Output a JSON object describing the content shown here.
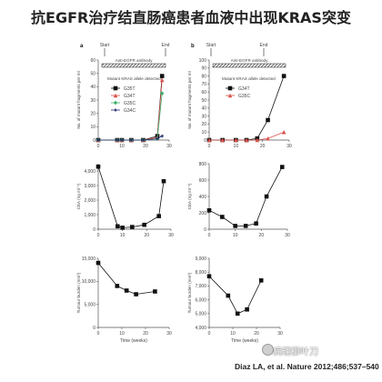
{
  "title": "抗EGFR治疗结直肠癌患者血液中出现KRAS突变",
  "citation": "Diaz LA, et al. Nature 2012;486;537–540",
  "watermark": "病理柳叶刀",
  "panels": {
    "a": {
      "letter": "a",
      "start": "Start",
      "end": "End",
      "antibody": "Anti-EGFR antibody"
    },
    "b": {
      "letter": "b",
      "start": "Start",
      "end": "End",
      "antibody": "Anti-EGFR antibody"
    }
  },
  "colors": {
    "black": "#111111",
    "red": "#d9534f",
    "green": "#3cb371",
    "navy": "#1f2a6b",
    "axis": "#555555"
  },
  "chart_data": [
    {
      "type": "line",
      "panel": "a-top",
      "ylabel": "No. of mutant fragments per ml",
      "xlim": [
        0,
        30
      ],
      "ylim": [
        0,
        60
      ],
      "xticks": [
        0,
        10,
        20,
        30
      ],
      "yticks": [
        0,
        10,
        20,
        30,
        40,
        50,
        60
      ],
      "legend_title": "Mutant KRAS allele detected",
      "series": [
        {
          "name": "G35T",
          "color": "#111111",
          "marker": "square",
          "x": [
            0,
            8,
            10,
            14,
            19,
            25,
            27
          ],
          "y": [
            0,
            0,
            0,
            0,
            0,
            3,
            48
          ]
        },
        {
          "name": "G34T",
          "color": "#d9534f",
          "marker": "triangle",
          "x": [
            0,
            8,
            10,
            14,
            19,
            25,
            27
          ],
          "y": [
            0,
            0,
            0,
            0,
            0,
            2,
            45
          ]
        },
        {
          "name": "G35C",
          "color": "#3cb371",
          "marker": "diamond",
          "x": [
            0,
            8,
            10,
            14,
            19,
            25,
            27
          ],
          "y": [
            0,
            0,
            0,
            0,
            0,
            1,
            35
          ]
        },
        {
          "name": "G34C",
          "color": "#1f2a6b",
          "marker": "star",
          "x": [
            0,
            8,
            10,
            14,
            19,
            25,
            27
          ],
          "y": [
            0,
            0,
            0,
            0,
            0,
            1,
            3
          ]
        }
      ]
    },
    {
      "type": "line",
      "panel": "b-top",
      "ylabel": "No. of mutant fragments per ml",
      "xlim": [
        0,
        30
      ],
      "ylim": [
        0,
        100
      ],
      "xticks": [
        0,
        10,
        20,
        30
      ],
      "yticks": [
        0,
        10,
        20,
        30,
        40,
        50,
        60,
        70,
        80,
        90,
        100
      ],
      "legend_title": "Mutant KRAS allele detected",
      "series": [
        {
          "name": "G34T",
          "color": "#111111",
          "marker": "square",
          "x": [
            0,
            5,
            10,
            14,
            18,
            22,
            28
          ],
          "y": [
            0,
            0,
            0,
            0,
            2,
            25,
            80
          ]
        },
        {
          "name": "G35C",
          "color": "#d9534f",
          "marker": "triangle",
          "x": [
            0,
            5,
            10,
            14,
            18,
            22,
            28
          ],
          "y": [
            0,
            0,
            0,
            0,
            0,
            2,
            10
          ]
        }
      ]
    },
    {
      "type": "line",
      "panel": "a-mid",
      "ylabel": "CEA (ng ml⁻¹)",
      "xlim": [
        0,
        30
      ],
      "ylim": [
        0,
        4500
      ],
      "xticks": [
        0,
        10,
        20,
        30
      ],
      "yticks": [
        0,
        1000,
        2000,
        3000,
        4000
      ],
      "series": [
        {
          "name": "",
          "color": "#111111",
          "marker": "square",
          "x": [
            0,
            8,
            10,
            14,
            19,
            25,
            27
          ],
          "y": [
            4300,
            200,
            100,
            150,
            300,
            900,
            3300
          ]
        }
      ]
    },
    {
      "type": "line",
      "panel": "b-mid",
      "ylabel": "CEA (ng ml⁻¹)",
      "xlim": [
        0,
        30
      ],
      "ylim": [
        0,
        800
      ],
      "xticks": [
        0,
        10,
        20,
        30
      ],
      "yticks": [
        0,
        200,
        400,
        600,
        800
      ],
      "series": [
        {
          "name": "",
          "color": "#111111",
          "marker": "square",
          "x": [
            0,
            5,
            10,
            14,
            18,
            22,
            28
          ],
          "y": [
            230,
            150,
            40,
            40,
            70,
            400,
            760
          ]
        }
      ]
    },
    {
      "type": "line",
      "panel": "a-bot",
      "ylabel": "Tumour burden (mm³)",
      "xlabel": "Time (weeks)",
      "xlim": [
        0,
        30
      ],
      "ylim": [
        0,
        15000
      ],
      "xticks": [
        0,
        10,
        20,
        30
      ],
      "yticks": [
        0,
        5000,
        10000,
        15000
      ],
      "series": [
        {
          "name": "",
          "color": "#111111",
          "marker": "square",
          "x": [
            0,
            8,
            12,
            16,
            24
          ],
          "y": [
            14000,
            9000,
            8000,
            7200,
            7800
          ]
        }
      ]
    },
    {
      "type": "line",
      "panel": "b-bot",
      "ylabel": "Tumour burden (mm³)",
      "xlabel": "Time (weeks)",
      "xlim": [
        0,
        30
      ],
      "ylim": [
        4000,
        9000
      ],
      "xticks": [
        0,
        10,
        20,
        30
      ],
      "yticks": [
        4000,
        5000,
        6000,
        7000,
        8000,
        9000
      ],
      "series": [
        {
          "name": "",
          "color": "#111111",
          "marker": "square",
          "x": [
            0,
            8,
            12,
            16,
            22
          ],
          "y": [
            7700,
            6300,
            5000,
            5300,
            7400
          ]
        }
      ]
    }
  ]
}
